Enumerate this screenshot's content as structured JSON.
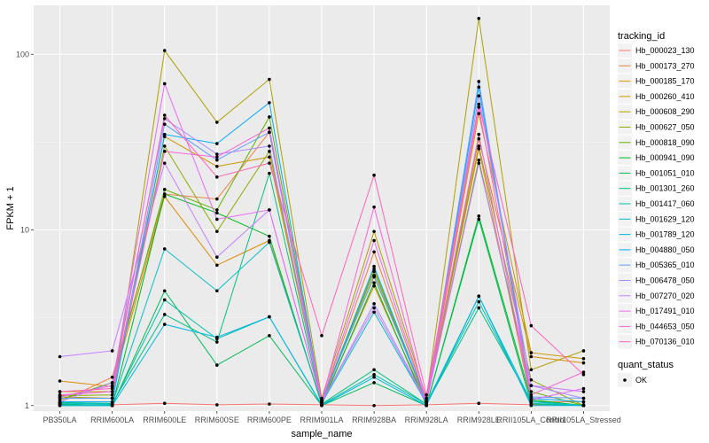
{
  "chart_data": {
    "type": "line",
    "xlabel": "sample_name",
    "ylabel": "FPKM + 1",
    "y_scale": "log10",
    "ylim": [
      0.93,
      190
    ],
    "y_ticks": [
      1,
      10,
      100
    ],
    "y_tick_labels": [
      "1",
      "10",
      "100"
    ],
    "grid": true,
    "legend_position": "right",
    "categories": [
      "PB350LA",
      "RRIM600LA",
      "RRIM600LE",
      "RRIM600SE",
      "RRIM600PE",
      "RRIM901LA",
      "RRIM928BA",
      "RRIM928LA",
      "RRIM928LE",
      "RRII105LA_Control",
      "RRII105LA_Stressed"
    ],
    "legend": {
      "color_title": "tracking_id",
      "shape_title": "quant_status",
      "shape_entries": [
        "OK"
      ]
    },
    "series": [
      {
        "name": "Hb_000023_130",
        "color": "#F8766D",
        "values": [
          1.01,
          1.01,
          1.03,
          1.01,
          1.02,
          1.01,
          1.0,
          1.01,
          1.03,
          1.01,
          1.01
        ]
      },
      {
        "name": "Hb_000173_270",
        "color": "#EE8043",
        "values": [
          1.05,
          1.45,
          16,
          15,
          36,
          1.05,
          7.5,
          1.05,
          29,
          1.05,
          1.05
        ]
      },
      {
        "name": "Hb_000185_170",
        "color": "#E08A00",
        "values": [
          1.38,
          1.28,
          15.5,
          6.3,
          8.7,
          1.04,
          4.8,
          1.04,
          33,
          1.9,
          1.75
        ]
      },
      {
        "name": "Hb_000260_410",
        "color": "#CC9600",
        "values": [
          1.2,
          1.2,
          34,
          23,
          26,
          1.06,
          6.0,
          1.03,
          46,
          2.0,
          1.85
        ]
      },
      {
        "name": "Hb_000608_290",
        "color": "#B09F00",
        "values": [
          1.12,
          1.1,
          105,
          41,
          72,
          1.1,
          9.8,
          1.1,
          160,
          1.6,
          2.05
        ]
      },
      {
        "name": "Hb_000627_050",
        "color": "#90A800",
        "values": [
          1.14,
          1.15,
          30,
          9.8,
          28,
          1.08,
          5.4,
          1.09,
          30,
          1.4,
          1.0
        ]
      },
      {
        "name": "Hb_000818_090",
        "color": "#62B100",
        "values": [
          1.08,
          1.35,
          17,
          13,
          44,
          1.05,
          5.8,
          1.04,
          25,
          1.2,
          1.0
        ]
      },
      {
        "name": "Hb_000941_090",
        "color": "#00B81F",
        "values": [
          1.02,
          1.0,
          16,
          12.5,
          9.2,
          1.01,
          5.0,
          1.0,
          12,
          1.08,
          1.0
        ]
      },
      {
        "name": "Hb_001051_010",
        "color": "#00BC59",
        "values": [
          1.0,
          1.0,
          4.5,
          1.7,
          2.5,
          1.0,
          1.35,
          1.0,
          11.5,
          1.02,
          1.0
        ]
      },
      {
        "name": "Hb_001301_260",
        "color": "#00BF83",
        "values": [
          1.04,
          1.03,
          3.3,
          2.3,
          21,
          1.02,
          1.6,
          1.02,
          3.6,
          1.06,
          1.0
        ]
      },
      {
        "name": "Hb_001417_060",
        "color": "#00C0A8",
        "values": [
          1.01,
          1.01,
          4.0,
          2.4,
          3.2,
          1.01,
          1.5,
          1.02,
          3.9,
          1.03,
          1.0
        ]
      },
      {
        "name": "Hb_001629_120",
        "color": "#00BECA",
        "values": [
          1.03,
          1.02,
          7.8,
          4.5,
          8.5,
          1.03,
          3.4,
          1.03,
          4.2,
          1.05,
          1.0
        ]
      },
      {
        "name": "Hb_001789_120",
        "color": "#00B8E7",
        "values": [
          1.0,
          1.0,
          2.9,
          2.45,
          3.2,
          1.0,
          1.45,
          1.0,
          4.2,
          1.0,
          1.0
        ]
      },
      {
        "name": "Hb_004880_050",
        "color": "#00ABFD",
        "values": [
          1.05,
          1.05,
          35,
          31,
          53,
          1.04,
          6.2,
          1.05,
          65,
          1.1,
          1.05
        ]
      },
      {
        "name": "Hb_005365_010",
        "color": "#619CFF",
        "values": [
          1.1,
          1.1,
          40,
          25,
          36,
          1.05,
          5.5,
          1.06,
          70,
          1.12,
          1.1
        ]
      },
      {
        "name": "Hb_006478_050",
        "color": "#A58AFF",
        "values": [
          1.05,
          1.35,
          43,
          27,
          30,
          1.04,
          3.8,
          1.05,
          58,
          1.3,
          1.1
        ]
      },
      {
        "name": "Hb_007270_020",
        "color": "#C77CFF",
        "values": [
          1.9,
          2.05,
          24,
          7.0,
          13,
          1.05,
          3.6,
          1.04,
          24,
          1.3,
          1.2
        ]
      },
      {
        "name": "Hb_017491_010",
        "color": "#E76BF3",
        "values": [
          1.12,
          1.3,
          68,
          11.5,
          13,
          1.05,
          8.7,
          1.05,
          35,
          1.08,
          1.25
        ]
      },
      {
        "name": "Hb_044653_050",
        "color": "#FA62DB",
        "values": [
          1.15,
          1.2,
          28,
          26,
          38,
          1.06,
          13.5,
          1.06,
          50,
          1.15,
          1.55
        ]
      },
      {
        "name": "Hb_070136_010",
        "color": "#FF62BC",
        "values": [
          1.2,
          1.25,
          45,
          20,
          24,
          2.5,
          20.5,
          1.15,
          52,
          2.85,
          1.5
        ]
      }
    ]
  }
}
